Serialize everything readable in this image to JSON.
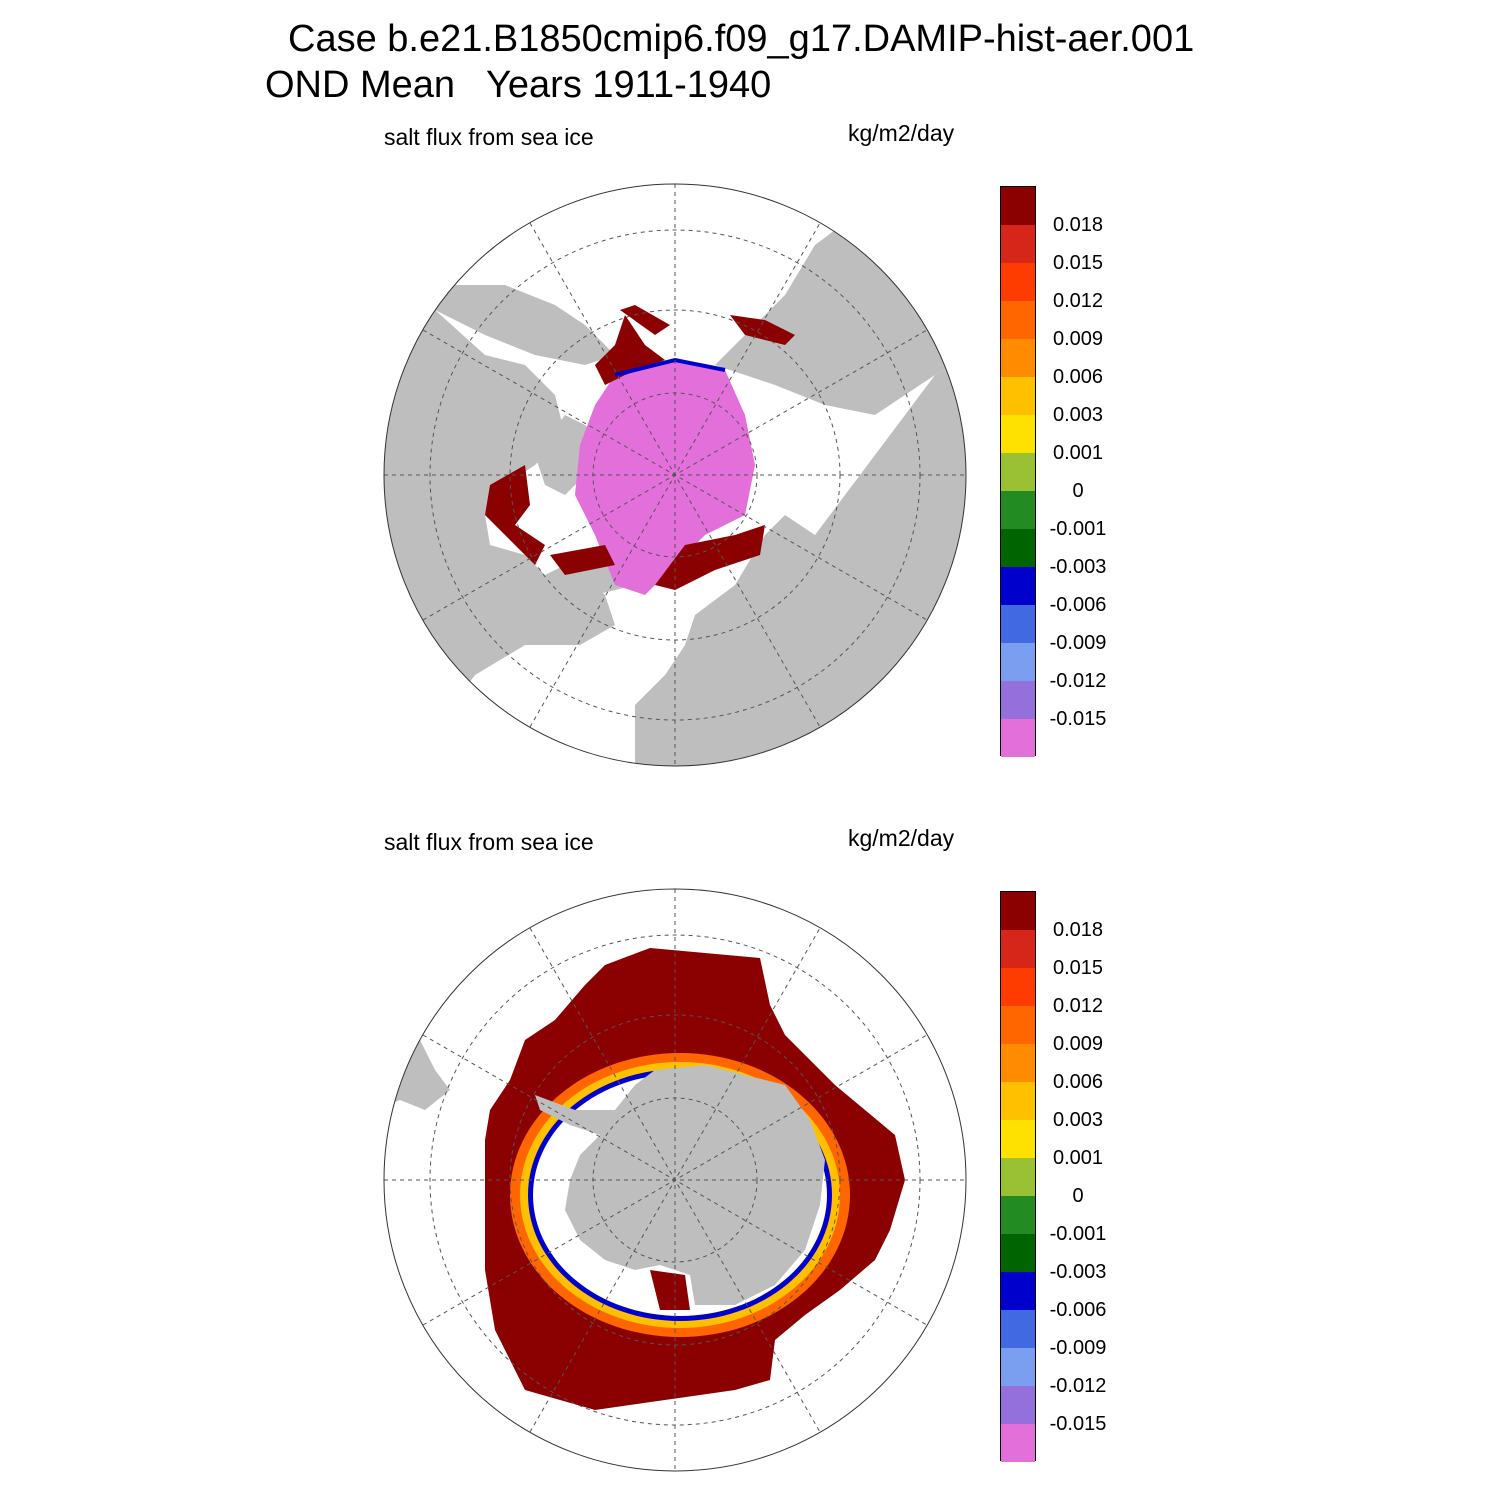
{
  "page": {
    "title_line1": "Case b.e21.B1850cmip6.f09_g17.DAMIP-hist-aer.001",
    "title_line2": "OND Mean   Years 1911-1940"
  },
  "panels": [
    {
      "id": "north",
      "left_label": "salt flux from sea ice",
      "right_label": "kg/m2/day",
      "hemisphere": "north",
      "regions_shown": [
        "Arctic Ocean",
        "Labrador Sea",
        "Barents Sea",
        "Sea of Okhotsk",
        "Bering Sea",
        "Greenland"
      ]
    },
    {
      "id": "south",
      "left_label": "salt flux from sea ice",
      "right_label": "kg/m2/day",
      "hemisphere": "south",
      "regions_shown": [
        "Antarctica",
        "Southern Ocean",
        "Weddell Sea",
        "Ross Sea"
      ]
    }
  ],
  "colorbar": {
    "units": "kg/m2/day",
    "tick_labels": [
      "0.018",
      "0.015",
      "0.012",
      "0.009",
      "0.006",
      "0.003",
      "0.001",
      "0",
      "-0.001",
      "-0.003",
      "-0.006",
      "-0.009",
      "-0.012",
      "-0.015"
    ],
    "colors": [
      "#8b0000",
      "#d6261a",
      "#ff3c00",
      "#ff6600",
      "#ff8c00",
      "#ffc000",
      "#ffe100",
      "#9ac033",
      "#228b22",
      "#006400",
      "#0000cd",
      "#4169e1",
      "#7b9ff0",
      "#9370db",
      "#e36fdb"
    ]
  },
  "style": {
    "land_color": "#bebebe",
    "ocean_color": "#ffffff",
    "grid_color": "#555555"
  }
}
